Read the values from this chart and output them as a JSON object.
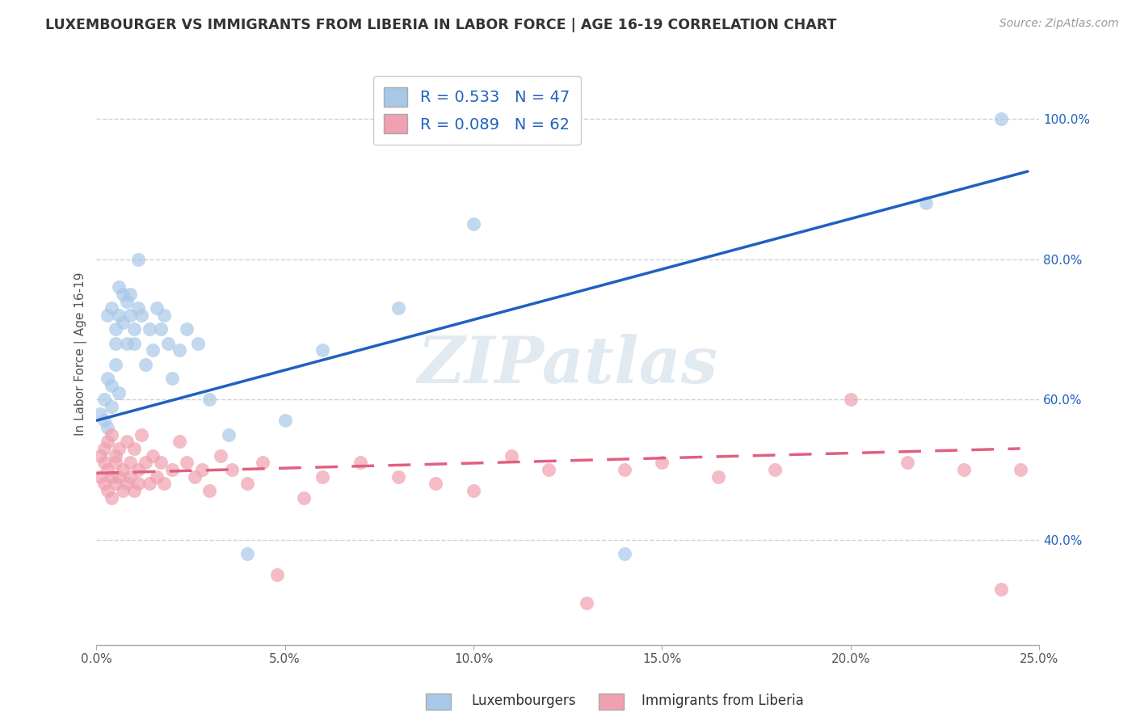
{
  "title": "LUXEMBOURGER VS IMMIGRANTS FROM LIBERIA IN LABOR FORCE | AGE 16-19 CORRELATION CHART",
  "source": "Source: ZipAtlas.com",
  "ylabel": "In Labor Force | Age 16-19",
  "xlim": [
    0.0,
    0.25
  ],
  "ylim": [
    0.25,
    1.08
  ],
  "xticks": [
    0.0,
    0.05,
    0.1,
    0.15,
    0.2,
    0.25
  ],
  "xtick_labels": [
    "0.0%",
    "5.0%",
    "10.0%",
    "15.0%",
    "20.0%",
    "25.0%"
  ],
  "yticks": [
    0.4,
    0.6,
    0.8,
    1.0
  ],
  "ytick_labels": [
    "40.0%",
    "60.0%",
    "80.0%",
    "100.0%"
  ],
  "blue_R": 0.533,
  "blue_N": 47,
  "pink_R": 0.089,
  "pink_N": 62,
  "blue_color": "#a8c8e8",
  "pink_color": "#f0a0b0",
  "blue_line_color": "#2060c0",
  "pink_line_color": "#e06080",
  "legend_label_blue": "Luxembourgers",
  "legend_label_pink": "Immigrants from Liberia",
  "blue_scatter_x": [
    0.001,
    0.002,
    0.002,
    0.003,
    0.003,
    0.003,
    0.004,
    0.004,
    0.004,
    0.005,
    0.005,
    0.005,
    0.006,
    0.006,
    0.006,
    0.007,
    0.007,
    0.008,
    0.008,
    0.009,
    0.009,
    0.01,
    0.01,
    0.011,
    0.011,
    0.012,
    0.013,
    0.014,
    0.015,
    0.016,
    0.017,
    0.018,
    0.019,
    0.02,
    0.022,
    0.024,
    0.027,
    0.03,
    0.035,
    0.04,
    0.05,
    0.06,
    0.08,
    0.1,
    0.14,
    0.22,
    0.24
  ],
  "blue_scatter_y": [
    0.58,
    0.6,
    0.57,
    0.56,
    0.63,
    0.72,
    0.62,
    0.59,
    0.73,
    0.65,
    0.7,
    0.68,
    0.61,
    0.72,
    0.76,
    0.75,
    0.71,
    0.68,
    0.74,
    0.72,
    0.75,
    0.7,
    0.68,
    0.73,
    0.8,
    0.72,
    0.65,
    0.7,
    0.67,
    0.73,
    0.7,
    0.72,
    0.68,
    0.63,
    0.67,
    0.7,
    0.68,
    0.6,
    0.55,
    0.38,
    0.57,
    0.67,
    0.73,
    0.85,
    0.38,
    0.88,
    1.0
  ],
  "pink_scatter_x": [
    0.001,
    0.001,
    0.002,
    0.002,
    0.002,
    0.003,
    0.003,
    0.003,
    0.004,
    0.004,
    0.004,
    0.005,
    0.005,
    0.005,
    0.006,
    0.006,
    0.007,
    0.007,
    0.008,
    0.008,
    0.009,
    0.009,
    0.01,
    0.01,
    0.011,
    0.011,
    0.012,
    0.013,
    0.014,
    0.015,
    0.016,
    0.017,
    0.018,
    0.02,
    0.022,
    0.024,
    0.026,
    0.028,
    0.03,
    0.033,
    0.036,
    0.04,
    0.044,
    0.048,
    0.055,
    0.06,
    0.07,
    0.08,
    0.09,
    0.1,
    0.11,
    0.12,
    0.13,
    0.14,
    0.15,
    0.165,
    0.18,
    0.2,
    0.215,
    0.23,
    0.24,
    0.245
  ],
  "pink_scatter_y": [
    0.52,
    0.49,
    0.51,
    0.48,
    0.53,
    0.5,
    0.47,
    0.54,
    0.49,
    0.46,
    0.55,
    0.51,
    0.48,
    0.52,
    0.49,
    0.53,
    0.5,
    0.47,
    0.48,
    0.54,
    0.51,
    0.49,
    0.47,
    0.53,
    0.5,
    0.48,
    0.55,
    0.51,
    0.48,
    0.52,
    0.49,
    0.51,
    0.48,
    0.5,
    0.54,
    0.51,
    0.49,
    0.5,
    0.47,
    0.52,
    0.5,
    0.48,
    0.51,
    0.35,
    0.46,
    0.49,
    0.51,
    0.49,
    0.48,
    0.47,
    0.52,
    0.5,
    0.31,
    0.5,
    0.51,
    0.49,
    0.5,
    0.6,
    0.51,
    0.5,
    0.33,
    0.5
  ],
  "blue_line_x0": 0.0,
  "blue_line_y0": 0.57,
  "blue_line_x1": 0.247,
  "blue_line_y1": 0.925,
  "pink_line_x0": 0.0,
  "pink_line_y0": 0.495,
  "pink_line_x1": 0.245,
  "pink_line_y1": 0.53,
  "watermark_text": "ZIPatlas",
  "background_color": "#ffffff",
  "grid_color": "#cccccc"
}
